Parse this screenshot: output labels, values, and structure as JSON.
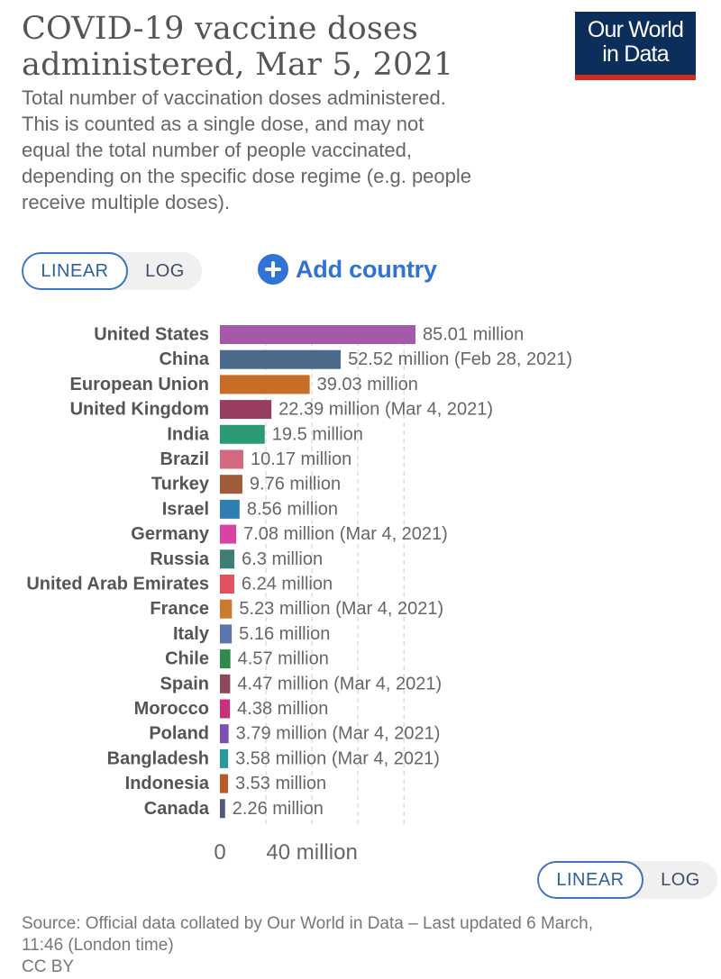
{
  "title": {
    "line1": "COVID-19 vaccine doses",
    "line2": "administered, Mar 5, 2021"
  },
  "logo": {
    "line1": "Our World",
    "line2": "in Data"
  },
  "subtitle": {
    "lines": [
      "Total number of vaccination doses administered.",
      "This is counted as a single dose, and may not",
      "equal the total number of people vaccinated,",
      "depending on the specific dose regime (e.g. people",
      "receive multiple doses)."
    ]
  },
  "controls": {
    "scale_linear": "LINEAR",
    "scale_log": "LOG",
    "add_country": "Add country",
    "add_icon": "plus-circle-icon"
  },
  "chart_data": {
    "type": "bar",
    "orientation": "horizontal",
    "title": "COVID-19 vaccine doses administered, Mar 5, 2021",
    "categories": [
      "United States",
      "China",
      "European Union",
      "United Kingdom",
      "India",
      "Brazil",
      "Turkey",
      "Israel",
      "Germany",
      "Russia",
      "United Arab Emirates",
      "France",
      "Italy",
      "Chile",
      "Spain",
      "Morocco",
      "Poland",
      "Bangladesh",
      "Indonesia",
      "Canada"
    ],
    "values": [
      85.01,
      52.52,
      39.03,
      22.39,
      19.5,
      10.17,
      9.76,
      8.56,
      7.08,
      6.3,
      6.24,
      5.23,
      5.16,
      4.57,
      4.47,
      4.38,
      3.79,
      3.58,
      3.53,
      2.26
    ],
    "value_labels": [
      "85.01 million",
      "52.52 million (Feb 28, 2021)",
      "39.03 million",
      "22.39 million (Mar 4, 2021)",
      "19.5 million",
      "10.17 million",
      "9.76 million",
      "8.56 million",
      "7.08 million (Mar 4, 2021)",
      "6.3 million",
      "6.24 million",
      "5.23 million (Mar 4, 2021)",
      "5.16 million",
      "4.57 million",
      "4.47 million (Mar 4, 2021)",
      "4.38 million",
      "3.79 million (Mar 4, 2021)",
      "3.58 million (Mar 4, 2021)",
      "3.53 million",
      "2.26 million"
    ],
    "colors": [
      "#a45aa9",
      "#4c6a8c",
      "#c86d29",
      "#963d60",
      "#2c9a72",
      "#d26a7f",
      "#a05b3b",
      "#2f7fb5",
      "#d844a4",
      "#3e7e74",
      "#e0525f",
      "#cc7a2c",
      "#5a76ad",
      "#2e8a4d",
      "#8c4a59",
      "#c9307a",
      "#7b4fb0",
      "#2a9896",
      "#b95a2a",
      "#4d5b78"
    ],
    "xlim": [
      0,
      85.01
    ],
    "xticks": [
      0,
      40
    ],
    "xtick_labels": [
      "0",
      "40 million"
    ],
    "grid": "vertical dashed gridlines"
  },
  "source": {
    "lines": [
      "Source: Official data collated by Our World in Data – Last updated 6 March,",
      "11:46 (London time)",
      "CC BY"
    ]
  }
}
